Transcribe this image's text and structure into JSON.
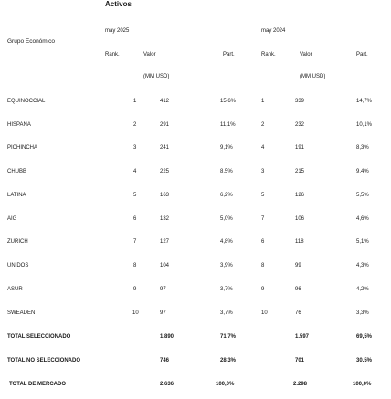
{
  "header": {
    "title": "Activos",
    "group_label": "Grupo Económico",
    "periods": [
      "may 2025",
      "may 2024"
    ],
    "col_rank": "Rank.",
    "col_value": "Valor",
    "col_part": "Part.",
    "unit": "(MM USD)"
  },
  "rows": [
    {
      "name": "EQUINOCCIAL",
      "rank25": "1",
      "val25": "412",
      "part25": "15,6%",
      "rank24": "1",
      "val24": "339",
      "part24": "14,7%"
    },
    {
      "name": "HISPANA",
      "rank25": "2",
      "val25": "291",
      "part25": "11,1%",
      "rank24": "2",
      "val24": "232",
      "part24": "10,1%"
    },
    {
      "name": "PICHINCHA",
      "rank25": "3",
      "val25": "241",
      "part25": "9,1%",
      "rank24": "4",
      "val24": "191",
      "part24": "8,3%"
    },
    {
      "name": "CHUBB",
      "rank25": "4",
      "val25": "225",
      "part25": "8,5%",
      "rank24": "3",
      "val24": "215",
      "part24": "9,4%"
    },
    {
      "name": "LATINA",
      "rank25": "5",
      "val25": "163",
      "part25": "6,2%",
      "rank24": "5",
      "val24": "126",
      "part24": "5,5%"
    },
    {
      "name": "AIG",
      "rank25": "6",
      "val25": "132",
      "part25": "5,0%",
      "rank24": "7",
      "val24": "106",
      "part24": "4,6%"
    },
    {
      "name": "ZURICH",
      "rank25": "7",
      "val25": "127",
      "part25": "4,8%",
      "rank24": "6",
      "val24": "118",
      "part24": "5,1%"
    },
    {
      "name": "UNIDOS",
      "rank25": "8",
      "val25": "104",
      "part25": "3,9%",
      "rank24": "8",
      "val24": "99",
      "part24": "4,3%"
    },
    {
      "name": "ASUR",
      "rank25": "9",
      "val25": "97",
      "part25": "3,7%",
      "rank24": "9",
      "val24": "96",
      "part24": "4,2%"
    },
    {
      "name": "SWEADEN",
      "rank25": "10",
      "val25": "97",
      "part25": "3,7%",
      "rank24": "10",
      "val24": "76",
      "part24": "3,3%"
    }
  ],
  "totals": [
    {
      "name": "TOTAL SELECCIONADO",
      "val25": "1.890",
      "part25": "71,7%",
      "val24": "1.597",
      "part24": "69,5%"
    },
    {
      "name": "TOTAL NO SELECCIONADO",
      "val25": "746",
      "part25": "28,3%",
      "val24": "701",
      "part24": "30,5%"
    },
    {
      "name": "TOTAL DE MERCADO",
      "val25": "2.636",
      "part25": "100,0%",
      "val24": "2.298",
      "part24": "100,0%"
    }
  ]
}
